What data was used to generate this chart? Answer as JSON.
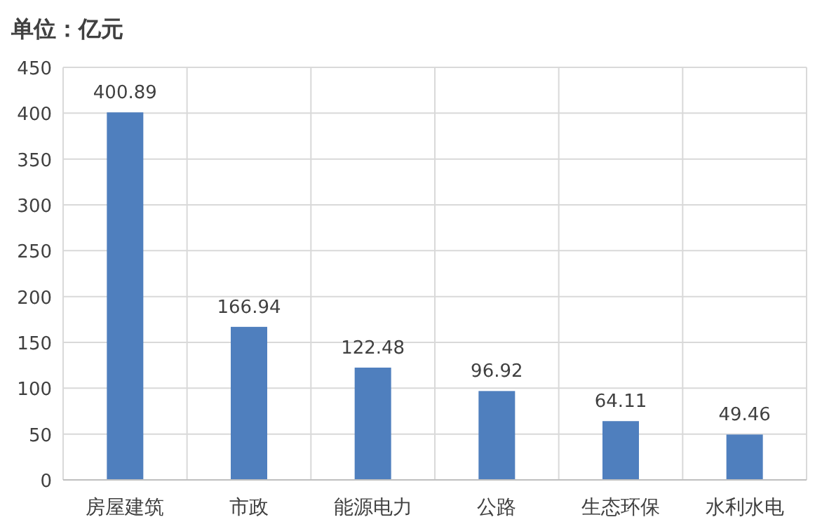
{
  "chart_data": {
    "type": "bar",
    "ylabel": "单位：亿元",
    "categories": [
      "房屋建筑",
      "市政",
      "能源电力",
      "公路",
      "生态环保",
      "水利水电"
    ],
    "values": [
      400.89,
      166.94,
      122.48,
      96.92,
      64.11,
      49.46
    ],
    "color": "#4f7fbe",
    "ylim": [
      0,
      450
    ],
    "yticks": [
      0,
      50,
      100,
      150,
      200,
      250,
      300,
      350,
      400,
      450
    ],
    "grid": true,
    "data_labels": true
  }
}
